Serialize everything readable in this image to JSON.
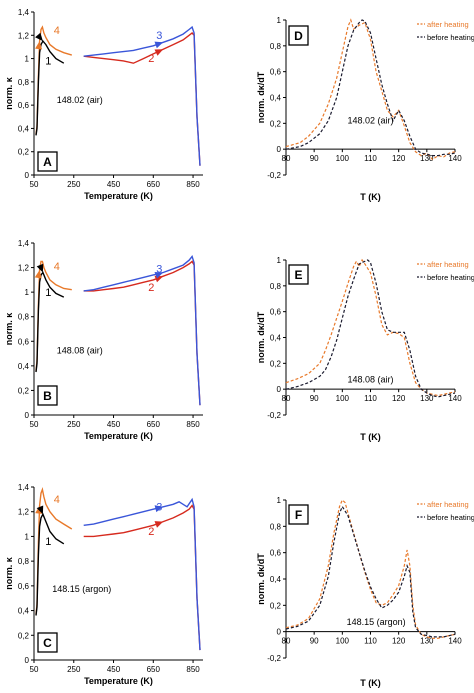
{
  "colors": {
    "black": "#000000",
    "orange": "#e8792a",
    "red": "#d62a1e",
    "blue": "#3a56d9",
    "dk_after": "#e8792a",
    "dk_before": "#1a1a2e"
  },
  "chart_data": [
    {
      "id": "A",
      "panel_label": "A",
      "type": "line",
      "xlabel": "Temperature (K)",
      "ylabel": "norm. κ",
      "xlim": [
        50,
        900
      ],
      "ylim": [
        0,
        1.4
      ],
      "xticks": [
        "50",
        "250",
        "450",
        "650",
        "850"
      ],
      "yticks": [
        "0",
        "0,2",
        "0,4",
        "0,6",
        "0,8",
        "1",
        "1,2",
        "1,4"
      ],
      "annotation": "148.02 (air)",
      "curve_labels": [
        "1",
        "2",
        "3",
        "4"
      ],
      "series": [
        {
          "color": "orange",
          "x": [
            60,
            65,
            72,
            78,
            85,
            92,
            100,
            110,
            130,
            160,
            200,
            240
          ],
          "y": [
            0.35,
            0.42,
            0.85,
            1.15,
            1.25,
            1.27,
            1.22,
            1.18,
            1.12,
            1.08,
            1.05,
            1.03
          ]
        },
        {
          "color": "black",
          "x": [
            60,
            65,
            72,
            78,
            85,
            95,
            110,
            130,
            160,
            200
          ],
          "y": [
            0.34,
            0.4,
            0.8,
            1.05,
            1.12,
            1.15,
            1.12,
            1.06,
            1.0,
            0.96
          ]
        },
        {
          "color": "red",
          "x": [
            300,
            350,
            400,
            450,
            500,
            550,
            600,
            650,
            700,
            750,
            800,
            830,
            845,
            855,
            870,
            885
          ],
          "y": [
            1.02,
            1.01,
            1.0,
            0.99,
            0.98,
            0.96,
            1.0,
            1.04,
            1.08,
            1.12,
            1.16,
            1.2,
            1.22,
            1.2,
            0.5,
            0.08
          ]
        },
        {
          "color": "blue",
          "x": [
            300,
            350,
            400,
            450,
            500,
            550,
            600,
            650,
            700,
            750,
            800,
            830,
            845,
            855,
            870,
            885
          ],
          "y": [
            1.02,
            1.03,
            1.04,
            1.05,
            1.06,
            1.07,
            1.09,
            1.11,
            1.14,
            1.17,
            1.21,
            1.25,
            1.27,
            1.22,
            0.5,
            0.08
          ]
        }
      ]
    },
    {
      "id": "D",
      "panel_label": "D",
      "type": "line",
      "xlabel": "T (K)",
      "ylabel": "norm. dκ/dT",
      "xlim": [
        80,
        140
      ],
      "ylim": [
        -0.2,
        1
      ],
      "xticks": [
        "80",
        "90",
        "100",
        "110",
        "120",
        "130",
        "140"
      ],
      "yticks": [
        "-0,2",
        "0",
        "0,2",
        "0,4",
        "0,6",
        "0,8",
        "1"
      ],
      "annotation": "148.02 (air)",
      "legend": [
        "after heating",
        "before heating"
      ],
      "series": [
        {
          "name": "after heating",
          "color": "dk_after",
          "x": [
            80,
            85,
            88,
            92,
            95,
            98,
            100,
            102,
            103,
            104,
            106,
            108,
            110,
            112,
            114,
            116,
            118,
            120,
            122,
            124,
            126,
            128,
            130,
            132,
            134,
            136,
            138,
            140
          ],
          "y": [
            0.02,
            0.05,
            0.1,
            0.2,
            0.35,
            0.55,
            0.75,
            0.95,
            1.0,
            0.93,
            0.96,
            0.98,
            0.85,
            0.6,
            0.45,
            0.3,
            0.25,
            0.3,
            0.18,
            0.05,
            -0.02,
            -0.05,
            -0.03,
            -0.08,
            -0.05,
            -0.06,
            -0.03,
            -0.02
          ]
        },
        {
          "name": "before heating",
          "color": "dk_before",
          "x": [
            80,
            85,
            88,
            92,
            95,
            98,
            100,
            102,
            104,
            106,
            107,
            108,
            110,
            112,
            114,
            116,
            118,
            120,
            122,
            124,
            126,
            128,
            130,
            132,
            134,
            136,
            138,
            140
          ],
          "y": [
            0.0,
            0.02,
            0.05,
            0.12,
            0.22,
            0.4,
            0.6,
            0.8,
            0.92,
            0.98,
            1.0,
            0.99,
            0.9,
            0.7,
            0.5,
            0.35,
            0.22,
            0.3,
            0.22,
            0.1,
            0.0,
            -0.03,
            -0.04,
            -0.05,
            -0.05,
            -0.04,
            -0.04,
            -0.03
          ]
        }
      ]
    },
    {
      "id": "B",
      "panel_label": "B",
      "type": "line",
      "xlabel": "Temperature (K)",
      "ylabel": "norm. κ",
      "xlim": [
        50,
        900
      ],
      "ylim": [
        0,
        1.4
      ],
      "xticks": [
        "50",
        "250",
        "450",
        "650",
        "850"
      ],
      "yticks": [
        "0",
        "0,2",
        "0,4",
        "0,6",
        "0,8",
        "1",
        "1,2",
        "1,4"
      ],
      "annotation": "148.08 (air)",
      "curve_labels": [
        "1",
        "2",
        "3",
        "4"
      ],
      "series": [
        {
          "color": "orange",
          "x": [
            60,
            65,
            72,
            78,
            85,
            92,
            100,
            110,
            130,
            160,
            200,
            240
          ],
          "y": [
            0.36,
            0.44,
            0.9,
            1.18,
            1.25,
            1.25,
            1.2,
            1.16,
            1.1,
            1.06,
            1.03,
            1.02
          ]
        },
        {
          "color": "black",
          "x": [
            60,
            65,
            72,
            78,
            85,
            95,
            110,
            130,
            160,
            200
          ],
          "y": [
            0.35,
            0.42,
            0.85,
            1.08,
            1.14,
            1.16,
            1.1,
            1.04,
            0.99,
            0.96
          ]
        },
        {
          "color": "red",
          "x": [
            300,
            350,
            400,
            450,
            500,
            550,
            600,
            650,
            700,
            750,
            800,
            830,
            845,
            855,
            870,
            885
          ],
          "y": [
            1.01,
            1.01,
            1.02,
            1.03,
            1.04,
            1.06,
            1.08,
            1.1,
            1.13,
            1.16,
            1.2,
            1.23,
            1.25,
            1.22,
            0.5,
            0.08
          ]
        },
        {
          "color": "blue",
          "x": [
            300,
            350,
            400,
            450,
            500,
            550,
            600,
            650,
            700,
            750,
            800,
            830,
            845,
            855,
            870,
            885
          ],
          "y": [
            1.01,
            1.02,
            1.04,
            1.06,
            1.08,
            1.1,
            1.12,
            1.14,
            1.16,
            1.19,
            1.22,
            1.26,
            1.29,
            1.24,
            0.5,
            0.08
          ]
        }
      ]
    },
    {
      "id": "E",
      "panel_label": "E",
      "type": "line",
      "xlabel": "T (K)",
      "ylabel": "norm. dκ/dT",
      "xlim": [
        80,
        140
      ],
      "ylim": [
        -0.2,
        1
      ],
      "xticks": [
        "80",
        "90",
        "100",
        "110",
        "120",
        "130",
        "140"
      ],
      "yticks": [
        "-0,2",
        "0",
        "0,2",
        "0,4",
        "0,6",
        "0,8",
        "1"
      ],
      "annotation": "148.08 (air)",
      "legend": [
        "after heating",
        "before heating"
      ],
      "series": [
        {
          "name": "after heating",
          "color": "dk_after",
          "x": [
            80,
            84,
            88,
            92,
            94,
            96,
            98,
            100,
            102,
            104,
            105,
            106,
            107,
            108,
            110,
            112,
            114,
            116,
            118,
            120,
            122,
            124,
            126,
            128,
            130,
            132,
            134,
            136,
            138,
            140
          ],
          "y": [
            0.05,
            0.08,
            0.12,
            0.2,
            0.3,
            0.42,
            0.55,
            0.68,
            0.82,
            0.95,
            0.99,
            0.95,
            1.0,
            0.97,
            0.9,
            0.72,
            0.5,
            0.42,
            0.44,
            0.43,
            0.4,
            0.2,
            0.05,
            0.0,
            -0.03,
            -0.04,
            -0.05,
            -0.04,
            -0.03,
            -0.02
          ]
        },
        {
          "name": "before heating",
          "color": "dk_before",
          "x": [
            80,
            84,
            88,
            92,
            94,
            96,
            98,
            100,
            102,
            104,
            106,
            108,
            109,
            110,
            112,
            114,
            116,
            118,
            120,
            122,
            124,
            126,
            128,
            130,
            132,
            134,
            136,
            138,
            140
          ],
          "y": [
            0.0,
            0.02,
            0.05,
            0.1,
            0.15,
            0.25,
            0.38,
            0.55,
            0.72,
            0.85,
            0.97,
            0.99,
            1.0,
            0.98,
            0.82,
            0.6,
            0.46,
            0.44,
            0.44,
            0.44,
            0.3,
            0.1,
            0.0,
            -0.03,
            -0.05,
            -0.06,
            -0.05,
            -0.04,
            -0.03
          ]
        }
      ]
    },
    {
      "id": "C",
      "panel_label": "C",
      "type": "line",
      "xlabel": "Temperature (K)",
      "ylabel": "norm. κ",
      "xlim": [
        50,
        900
      ],
      "ylim": [
        0,
        1.4
      ],
      "xticks": [
        "50",
        "250",
        "450",
        "650",
        "850"
      ],
      "yticks": [
        "0",
        "0,2",
        "0,4",
        "0,6",
        "0,8",
        "1",
        "1,2",
        "1,4"
      ],
      "annotation": "148.15 (argon)",
      "curve_labels": [
        "1",
        "2",
        "3",
        "4"
      ],
      "series": [
        {
          "color": "orange",
          "x": [
            60,
            65,
            72,
            78,
            85,
            92,
            100,
            110,
            130,
            160,
            200,
            240
          ],
          "y": [
            0.37,
            0.45,
            0.95,
            1.25,
            1.35,
            1.38,
            1.32,
            1.26,
            1.2,
            1.14,
            1.1,
            1.06
          ]
        },
        {
          "color": "black",
          "x": [
            60,
            65,
            72,
            78,
            85,
            95,
            110,
            130,
            160,
            200
          ],
          "y": [
            0.36,
            0.43,
            0.85,
            1.08,
            1.15,
            1.18,
            1.12,
            1.04,
            0.98,
            0.94
          ]
        },
        {
          "color": "red",
          "x": [
            300,
            350,
            400,
            450,
            500,
            550,
            600,
            650,
            700,
            750,
            800,
            830,
            845,
            855,
            870,
            885
          ],
          "y": [
            1.0,
            1.0,
            1.01,
            1.02,
            1.03,
            1.05,
            1.07,
            1.09,
            1.12,
            1.15,
            1.19,
            1.22,
            1.25,
            1.22,
            0.5,
            0.08
          ]
        },
        {
          "color": "blue",
          "x": [
            300,
            350,
            400,
            450,
            500,
            550,
            600,
            650,
            700,
            750,
            780,
            800,
            820,
            845,
            855,
            870,
            885
          ],
          "y": [
            1.09,
            1.1,
            1.12,
            1.14,
            1.16,
            1.18,
            1.2,
            1.22,
            1.24,
            1.26,
            1.28,
            1.26,
            1.24,
            1.3,
            1.24,
            0.5,
            0.08
          ]
        }
      ]
    },
    {
      "id": "F",
      "panel_label": "F",
      "type": "line",
      "xlabel": "T (K)",
      "ylabel": "norm. dκ/dT",
      "xlim": [
        80,
        140
      ],
      "ylim": [
        -0.2,
        1
      ],
      "xticks": [
        "80",
        "90",
        "100",
        "110",
        "120",
        "130",
        "140"
      ],
      "yticks": [
        "-0,2",
        "0",
        "0,2",
        "0,4",
        "0,6",
        "0,8",
        "1"
      ],
      "annotation": "148.15 (argon)",
      "legend": [
        "after heating",
        "before heating"
      ],
      "series": [
        {
          "name": "after heating",
          "color": "dk_after",
          "x": [
            80,
            84,
            88,
            92,
            95,
            97,
            99,
            100,
            101,
            102,
            104,
            106,
            108,
            110,
            112,
            114,
            116,
            118,
            120,
            122,
            123,
            124,
            125,
            126,
            128,
            130,
            132,
            134,
            136,
            138,
            140
          ],
          "y": [
            0.03,
            0.05,
            0.1,
            0.25,
            0.5,
            0.75,
            0.95,
            1.0,
            0.98,
            0.9,
            0.75,
            0.6,
            0.45,
            0.32,
            0.22,
            0.2,
            0.22,
            0.28,
            0.35,
            0.5,
            0.62,
            0.5,
            0.2,
            0.05,
            -0.02,
            -0.04,
            -0.05,
            -0.05,
            -0.04,
            -0.03,
            -0.02
          ]
        },
        {
          "name": "before heating",
          "color": "dk_before",
          "x": [
            80,
            84,
            88,
            92,
            95,
            97,
            99,
            100,
            102,
            104,
            106,
            108,
            110,
            112,
            114,
            116,
            118,
            120,
            122,
            123,
            124,
            125,
            126,
            128,
            130,
            132,
            134,
            136,
            138,
            140
          ],
          "y": [
            0.02,
            0.04,
            0.08,
            0.2,
            0.42,
            0.68,
            0.9,
            0.95,
            0.88,
            0.74,
            0.6,
            0.46,
            0.34,
            0.25,
            0.18,
            0.2,
            0.24,
            0.3,
            0.42,
            0.5,
            0.45,
            0.15,
            0.03,
            -0.02,
            -0.03,
            -0.04,
            -0.04,
            -0.04,
            -0.03,
            -0.02
          ]
        }
      ]
    }
  ]
}
